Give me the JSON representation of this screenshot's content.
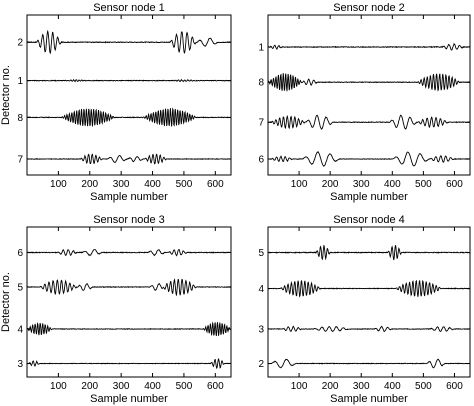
{
  "chart_data": [
    {
      "type": "line",
      "title": "Sensor node 1",
      "xlabel": "Sample number",
      "ylabel": "Detector no.",
      "xlim": [
        0,
        650
      ],
      "xticks": [
        100,
        200,
        300,
        400,
        500,
        600
      ],
      "grid": false,
      "series": [
        {
          "name": "2",
          "bursts": [
            {
              "start": 30,
              "end": 110,
              "amp": 0.9,
              "cycles": 5
            },
            {
              "start": 455,
              "end": 540,
              "amp": 0.9,
              "cycles": 5
            },
            {
              "start": 540,
              "end": 610,
              "amp": 0.35,
              "cycles": 2
            }
          ]
        },
        {
          "name": "1",
          "bursts": [
            {
              "start": 120,
              "end": 190,
              "amp": 0.08,
              "cycles": 8
            },
            {
              "start": 460,
              "end": 540,
              "amp": 0.08,
              "cycles": 8
            }
          ]
        },
        {
          "name": "8",
          "bursts": [
            {
              "start": 110,
              "end": 280,
              "amp": 0.9,
              "cycles": 22
            },
            {
              "start": 370,
              "end": 540,
              "amp": 0.9,
              "cycles": 22
            }
          ]
        },
        {
          "name": "7",
          "bursts": [
            {
              "start": 170,
              "end": 240,
              "amp": 0.55,
              "cycles": 6
            },
            {
              "start": 255,
              "end": 320,
              "amp": 0.4,
              "cycles": 2
            },
            {
              "start": 320,
              "end": 370,
              "amp": 0.3,
              "cycles": 2
            },
            {
              "start": 375,
              "end": 445,
              "amp": 0.55,
              "cycles": 6
            }
          ]
        }
      ]
    },
    {
      "type": "line",
      "title": "Sensor node 2",
      "xlabel": "Sample number",
      "ylabel": "",
      "xlim": [
        0,
        650
      ],
      "xticks": [
        100,
        200,
        300,
        400,
        500,
        600
      ],
      "grid": false,
      "series": [
        {
          "name": "1",
          "bursts": [
            {
              "start": 5,
              "end": 45,
              "amp": 0.15,
              "cycles": 3
            },
            {
              "start": 560,
              "end": 630,
              "amp": 0.25,
              "cycles": 4
            }
          ]
        },
        {
          "name": "8",
          "bursts": [
            {
              "start": 0,
              "end": 110,
              "amp": 0.9,
              "cycles": 14
            },
            {
              "start": 110,
              "end": 160,
              "amp": 0.3,
              "cycles": 3
            },
            {
              "start": 480,
              "end": 620,
              "amp": 0.85,
              "cycles": 14
            }
          ]
        },
        {
          "name": "7",
          "bursts": [
            {
              "start": 10,
              "end": 120,
              "amp": 0.6,
              "cycles": 9
            },
            {
              "start": 120,
              "end": 210,
              "amp": 0.7,
              "cycles": 3
            },
            {
              "start": 390,
              "end": 480,
              "amp": 0.7,
              "cycles": 3
            },
            {
              "start": 480,
              "end": 580,
              "amp": 0.5,
              "cycles": 7
            }
          ]
        },
        {
          "name": "6",
          "bursts": [
            {
              "start": 10,
              "end": 80,
              "amp": 0.3,
              "cycles": 5
            },
            {
              "start": 110,
              "end": 230,
              "amp": 0.8,
              "cycles": 3
            },
            {
              "start": 400,
              "end": 520,
              "amp": 0.8,
              "cycles": 3
            },
            {
              "start": 520,
              "end": 600,
              "amp": 0.35,
              "cycles": 5
            }
          ]
        }
      ]
    },
    {
      "type": "line",
      "title": "Sensor node 3",
      "xlabel": "Sample number",
      "ylabel": "Detector no.",
      "xlim": [
        0,
        650
      ],
      "xticks": [
        100,
        200,
        300,
        400,
        500,
        600
      ],
      "grid": false,
      "series": [
        {
          "name": "6",
          "bursts": [
            {
              "start": 95,
              "end": 160,
              "amp": 0.25,
              "cycles": 4
            },
            {
              "start": 175,
              "end": 240,
              "amp": 0.25,
              "cycles": 2
            },
            {
              "start": 385,
              "end": 440,
              "amp": 0.25,
              "cycles": 2
            },
            {
              "start": 450,
              "end": 510,
              "amp": 0.25,
              "cycles": 4
            }
          ]
        },
        {
          "name": "5",
          "bursts": [
            {
              "start": 40,
              "end": 160,
              "amp": 0.7,
              "cycles": 9
            },
            {
              "start": 160,
              "end": 210,
              "amp": 0.35,
              "cycles": 2
            },
            {
              "start": 390,
              "end": 440,
              "amp": 0.35,
              "cycles": 2
            },
            {
              "start": 430,
              "end": 540,
              "amp": 0.8,
              "cycles": 9
            }
          ]
        },
        {
          "name": "4",
          "bursts": [
            {
              "start": 0,
              "end": 80,
              "amp": 0.6,
              "cycles": 10
            },
            {
              "start": 560,
              "end": 650,
              "amp": 0.7,
              "cycles": 12
            }
          ]
        },
        {
          "name": "3",
          "bursts": [
            {
              "start": 5,
              "end": 40,
              "amp": 0.3,
              "cycles": 3
            },
            {
              "start": 585,
              "end": 630,
              "amp": 0.55,
              "cycles": 4
            }
          ]
        }
      ]
    },
    {
      "type": "line",
      "title": "Sensor node 4",
      "xlabel": "Sample number",
      "ylabel": "",
      "xlim": [
        0,
        650
      ],
      "xticks": [
        100,
        200,
        300,
        400,
        500,
        600
      ],
      "grid": false,
      "series": [
        {
          "name": "5",
          "bursts": [
            {
              "start": 155,
              "end": 200,
              "amp": 0.6,
              "cycles": 4
            },
            {
              "start": 385,
              "end": 430,
              "amp": 0.6,
              "cycles": 4
            }
          ]
        },
        {
          "name": "4",
          "bursts": [
            {
              "start": 40,
              "end": 170,
              "amp": 0.8,
              "cycles": 12
            },
            {
              "start": 410,
              "end": 560,
              "amp": 0.8,
              "cycles": 14
            }
          ]
        },
        {
          "name": "3",
          "bursts": [
            {
              "start": 45,
              "end": 110,
              "amp": 0.25,
              "cycles": 4
            },
            {
              "start": 145,
              "end": 260,
              "amp": 0.25,
              "cycles": 5
            },
            {
              "start": 340,
              "end": 400,
              "amp": 0.25,
              "cycles": 3
            },
            {
              "start": 520,
              "end": 600,
              "amp": 0.25,
              "cycles": 4
            }
          ]
        },
        {
          "name": "2",
          "bursts": [
            {
              "start": 10,
              "end": 90,
              "amp": 0.5,
              "cycles": 2
            },
            {
              "start": 510,
              "end": 570,
              "amp": 0.5,
              "cycles": 2
            }
          ]
        }
      ]
    }
  ]
}
